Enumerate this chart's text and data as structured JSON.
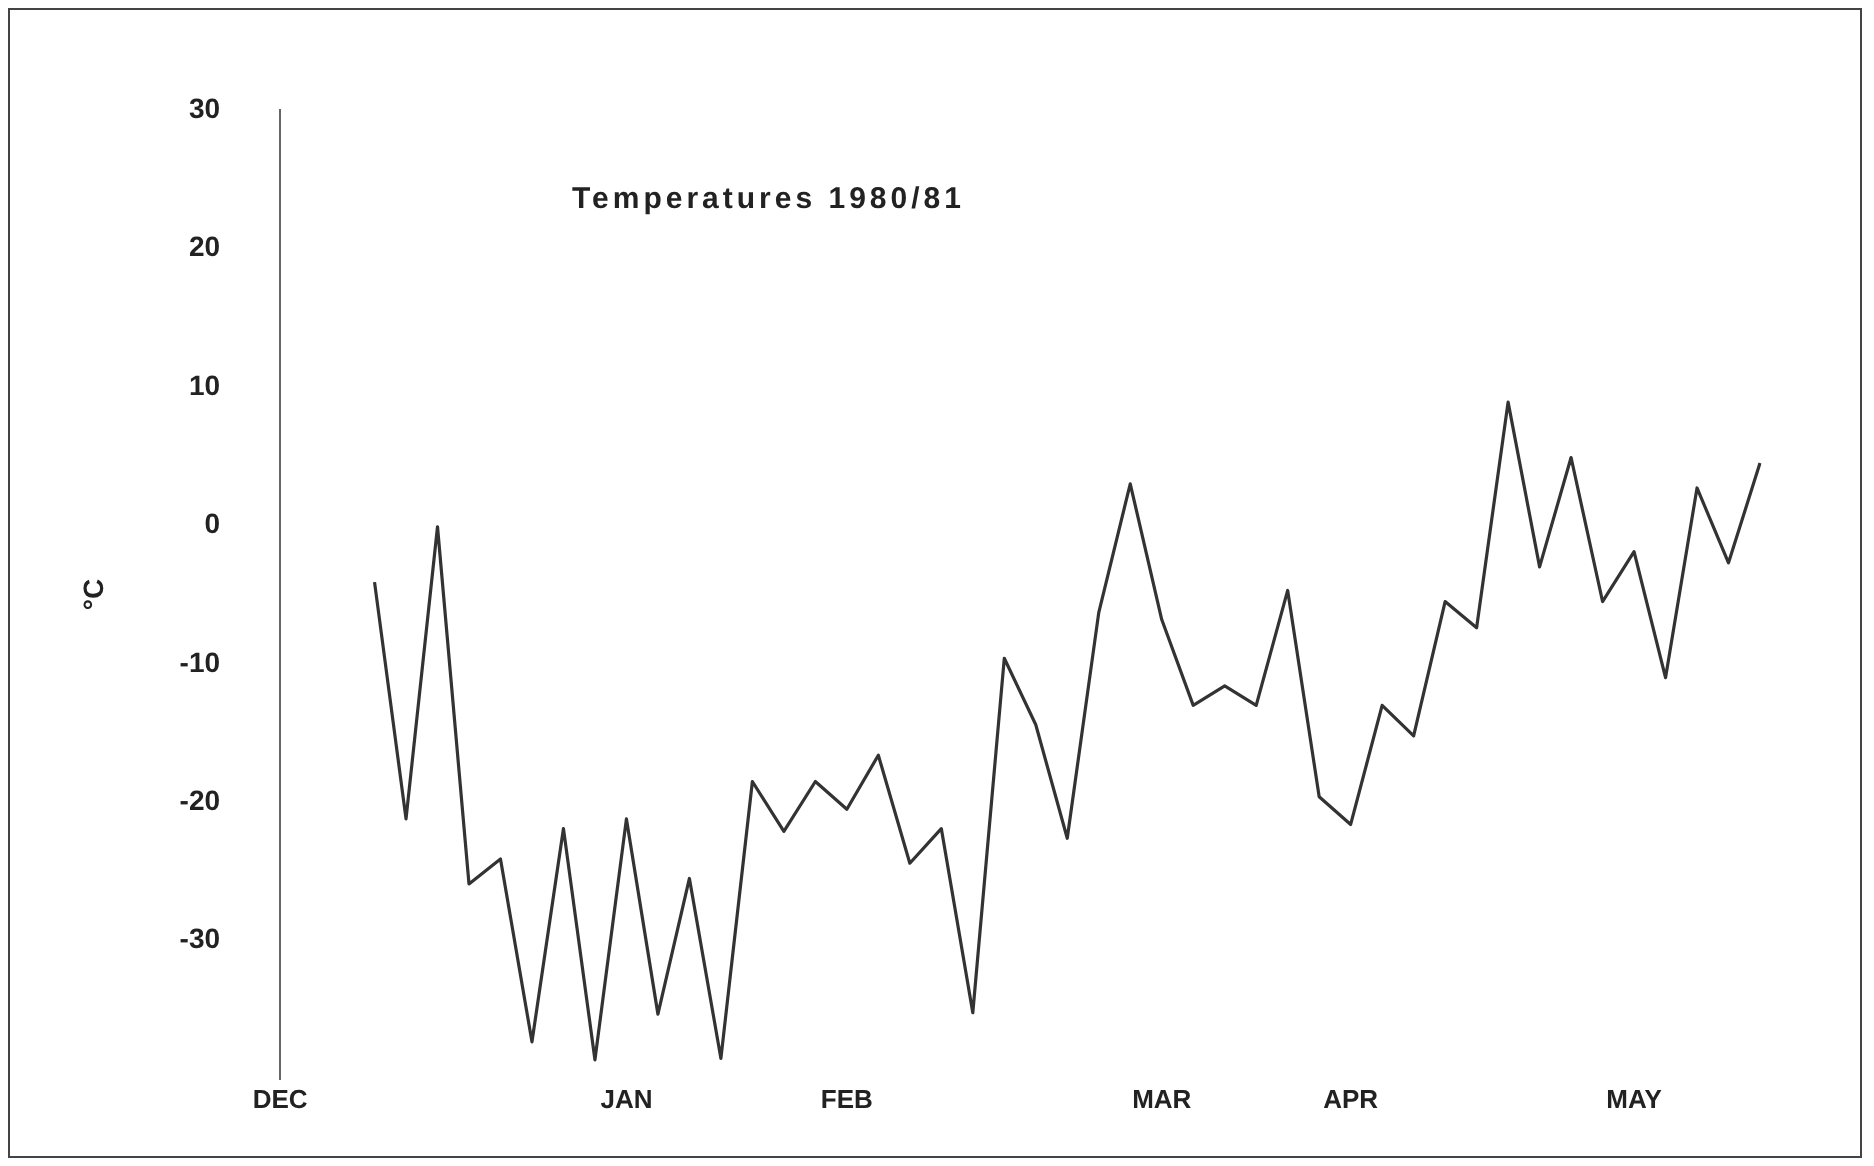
{
  "chart_data": {
    "type": "line",
    "title": "Temperatures 1980/81",
    "ylabel": "°C",
    "categories": [
      "DEC",
      null,
      null,
      null,
      null,
      null,
      null,
      null,
      null,
      null,
      null,
      "JAN",
      null,
      null,
      null,
      null,
      null,
      null,
      "FEB",
      null,
      null,
      null,
      null,
      null,
      null,
      null,
      null,
      null,
      "MAR",
      null,
      null,
      null,
      null,
      null,
      "APR",
      null,
      null,
      null,
      null,
      null,
      null,
      null,
      null,
      "MAY",
      null,
      null,
      null,
      null
    ],
    "series": [
      {
        "color": "#333333",
        "values": [
          null,
          null,
          null,
          -4.1,
          -21.2,
          -0.1,
          -25.9,
          -24.1,
          -37.3,
          -21.9,
          -38.6,
          -21.2,
          -35.3,
          -25.5,
          -38.5,
          -18.5,
          -22.1,
          -18.5,
          -20.5,
          -16.6,
          -24.4,
          -21.9,
          -35.2,
          -9.6,
          -14.4,
          -22.6,
          -6.3,
          3.0,
          -6.8,
          -13.0,
          -11.6,
          -13.0,
          -4.7,
          -19.6,
          -21.6,
          -13.0,
          -15.2,
          -5.5,
          -7.4,
          8.9,
          -3.0,
          4.9,
          -5.5,
          -1.9,
          -11.0,
          2.7,
          -2.7,
          4.5
        ]
      }
    ],
    "ylim": [
      -40,
      30
    ],
    "yticks": [
      -30,
      -20,
      -10,
      0,
      10,
      20,
      30
    ],
    "grid": false,
    "legend": false,
    "marker": "none",
    "line_style": "solid"
  }
}
